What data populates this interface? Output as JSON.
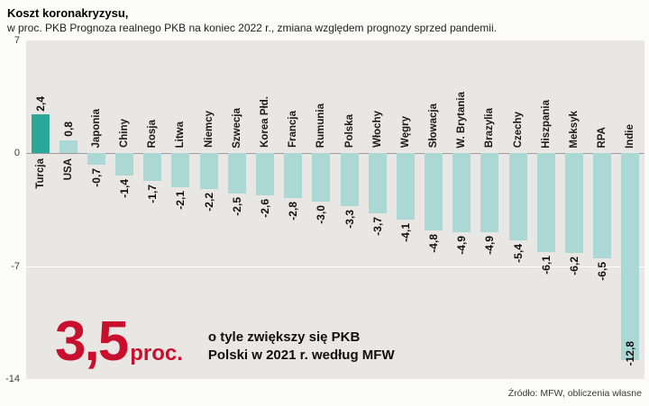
{
  "header": {
    "title": "Koszt koronakryzysu,",
    "subtitle": "w proc. PKB Prognoza realnego PKB na koniec 2022 r., zmiana względem prognozy sprzed pandemii."
  },
  "chart_data": {
    "type": "bar",
    "title": "Koszt koronakryzysu,",
    "subtitle": "w proc. PKB Prognoza realnego PKB na koniec 2022 r., zmiana względem prognozy sprzed pandemii.",
    "categories": [
      "Turcja",
      "USA",
      "Japonia",
      "Chiny",
      "Rosja",
      "Litwa",
      "Niemcy",
      "Szwecja",
      "Korea Płd.",
      "Francja",
      "Rumunia",
      "Polska",
      "Włochy",
      "Węgry",
      "Słowacja",
      "W. Brytania",
      "Brazylia",
      "Czechy",
      "Hiszpania",
      "Meksyk",
      "RPA",
      "Indie"
    ],
    "values": [
      2.4,
      0.8,
      -0.7,
      -1.4,
      -1.7,
      -2.1,
      -2.2,
      -2.5,
      -2.6,
      -2.8,
      -3.0,
      -3.3,
      -3.7,
      -4.1,
      -4.8,
      -4.9,
      -4.9,
      -5.4,
      -6.1,
      -6.2,
      -6.5,
      -12.8
    ],
    "value_labels": [
      "2,4",
      "0,8",
      "-0,7",
      "-1,4",
      "-1,7",
      "-2,1",
      "-2,2",
      "-2,5",
      "-2,6",
      "-2,8",
      "-3,0",
      "-3,3",
      "-3,7",
      "-4,1",
      "-4,8",
      "-4,9",
      "-4,9",
      "-5,4",
      "-6,1",
      "-6,2",
      "-6,5",
      "-12,8"
    ],
    "xlabel": "",
    "ylabel": "",
    "ylim": [
      -14,
      7
    ],
    "yticks": [
      7,
      0,
      -7,
      -14
    ],
    "ytick_labels": [
      "7",
      "0",
      "-7",
      "-14"
    ],
    "grid": true,
    "legend": false,
    "bar_color": "#abd8d4",
    "highlight_color": "#2ba79a",
    "highlight_index": 0
  },
  "annotation": {
    "big_value": "3,5",
    "big_unit": "proc.",
    "text_line1": "o tyle zwiększy się PKB",
    "text_line2": "Polski w 2021 r. według MFW"
  },
  "footer": {
    "source": "Źródło: MFW, obliczenia własne"
  }
}
